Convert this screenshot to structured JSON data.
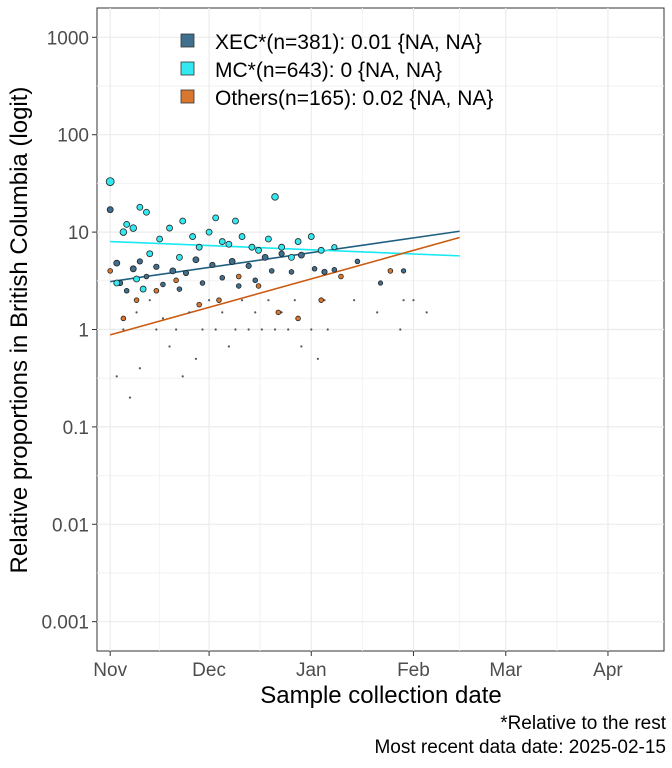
{
  "chart_data": {
    "type": "scatter",
    "y_scale": "logit",
    "xlabel": "Sample collection date",
    "ylabel": "Relative proportions in British Columbia (logit)",
    "x_ticks": [
      {
        "label": "Nov",
        "date": "2024-11-01"
      },
      {
        "label": "Dec",
        "date": "2024-12-01"
      },
      {
        "label": "Jan",
        "date": "2025-01-01"
      },
      {
        "label": "Feb",
        "date": "2025-02-01"
      },
      {
        "label": "Mar",
        "date": "2025-03-01"
      },
      {
        "label": "Apr",
        "date": "2025-04-01"
      }
    ],
    "y_ticks": [
      {
        "label": "0.001",
        "value": 0.001
      },
      {
        "label": "0.01",
        "value": 0.01
      },
      {
        "label": "0.1",
        "value": 0.1
      },
      {
        "label": "1",
        "value": 1
      },
      {
        "label": "10",
        "value": 10
      },
      {
        "label": "100",
        "value": 100
      },
      {
        "label": "1000",
        "value": 1000
      }
    ],
    "xlim": [
      "2024-10-28",
      "2025-04-18"
    ],
    "ylim": [
      0.0005,
      2000
    ],
    "grid": true,
    "legend_position": "top-left",
    "series": [
      {
        "name": "XEC*(n=381): 0.01 {NA, NA}",
        "color": "#3f6f8f",
        "line_color": "#1f5f80",
        "trend": [
          [
            "2024-11-01",
            3.1
          ],
          [
            "2025-02-15",
            10.2
          ]
        ],
        "points": [
          [
            "2024-11-01",
            17,
            1
          ],
          [
            "2024-11-03",
            4.8,
            1
          ],
          [
            "2024-11-04",
            3.0,
            0.8
          ],
          [
            "2024-11-06",
            2.5,
            0.6
          ],
          [
            "2024-11-08",
            4.2,
            1
          ],
          [
            "2024-11-10",
            5.0,
            0.8
          ],
          [
            "2024-11-12",
            3.5,
            0.6
          ],
          [
            "2024-11-15",
            4.4,
            0.8
          ],
          [
            "2024-11-17",
            2.9,
            0.6
          ],
          [
            "2024-11-20",
            4.0,
            1
          ],
          [
            "2024-11-22",
            2.6,
            0.6
          ],
          [
            "2024-11-24",
            3.8,
            0.8
          ],
          [
            "2024-11-27",
            5.2,
            1
          ],
          [
            "2024-11-29",
            3.0,
            0.6
          ],
          [
            "2024-12-02",
            4.6,
            0.8
          ],
          [
            "2024-12-05",
            3.4,
            0.6
          ],
          [
            "2024-12-08",
            5.0,
            1
          ],
          [
            "2024-12-10",
            2.8,
            0.6
          ],
          [
            "2024-12-13",
            4.5,
            0.8
          ],
          [
            "2024-12-15",
            3.2,
            0.6
          ],
          [
            "2024-12-18",
            5.5,
            1
          ],
          [
            "2024-12-20",
            4.0,
            0.6
          ],
          [
            "2024-12-23",
            6.0,
            0.8
          ],
          [
            "2024-12-26",
            3.9,
            0.6
          ],
          [
            "2024-12-29",
            5.8,
            1
          ],
          [
            "2025-01-02",
            4.2,
            0.6
          ],
          [
            "2025-01-05",
            3.9,
            0.8
          ],
          [
            "2025-01-08",
            4.1,
            0.6
          ],
          [
            "2025-01-15",
            5.0,
            0.6
          ],
          [
            "2025-01-22",
            3.0,
            0.5
          ],
          [
            "2025-01-29",
            4.0,
            0.5
          ]
        ]
      },
      {
        "name": "MC*(n=643): 0 {NA, NA}",
        "color": "#33e8f0",
        "line_color": "#19e8f4",
        "trend": [
          [
            "2024-11-01",
            8.0
          ],
          [
            "2025-02-15",
            5.7
          ]
        ],
        "points": [
          [
            "2024-11-01",
            33,
            1.6
          ],
          [
            "2024-11-03",
            3.0,
            1
          ],
          [
            "2024-11-05",
            10.0,
            1.2
          ],
          [
            "2024-11-06",
            12.0,
            1
          ],
          [
            "2024-11-08",
            11.0,
            1.2
          ],
          [
            "2024-11-09",
            3.3,
            1
          ],
          [
            "2024-11-10",
            18.0,
            1
          ],
          [
            "2024-11-11",
            2.6,
            1
          ],
          [
            "2024-11-12",
            16.0,
            1
          ],
          [
            "2024-11-13",
            6.0,
            1
          ],
          [
            "2024-11-16",
            8.5,
            1
          ],
          [
            "2024-11-19",
            11.0,
            1
          ],
          [
            "2024-11-22",
            5.5,
            1
          ],
          [
            "2024-11-23",
            13.0,
            1
          ],
          [
            "2024-11-26",
            9.0,
            1
          ],
          [
            "2024-11-28",
            7.0,
            1
          ],
          [
            "2024-12-01",
            10.0,
            1
          ],
          [
            "2024-12-03",
            14.0,
            1
          ],
          [
            "2024-12-05",
            8.0,
            1
          ],
          [
            "2024-12-07",
            7.5,
            1
          ],
          [
            "2024-12-09",
            13.0,
            1
          ],
          [
            "2024-12-11",
            9.0,
            1
          ],
          [
            "2024-12-14",
            7.0,
            1
          ],
          [
            "2024-12-16",
            6.5,
            1
          ],
          [
            "2024-12-19",
            8.5,
            1
          ],
          [
            "2024-12-21",
            23.0,
            1.2
          ],
          [
            "2024-12-23",
            7.0,
            1
          ],
          [
            "2024-12-26",
            5.5,
            1
          ],
          [
            "2024-12-28",
            8.0,
            1
          ],
          [
            "2025-01-01",
            9.0,
            1
          ],
          [
            "2025-01-04",
            6.5,
            1
          ],
          [
            "2025-01-08",
            7.0,
            0.8
          ]
        ]
      },
      {
        "name": "Others(n=165): 0.02 {NA, NA}",
        "color": "#d9772e",
        "line_color": "#cc5a10",
        "trend": [
          [
            "2024-11-01",
            0.88
          ],
          [
            "2025-02-15",
            8.8
          ]
        ],
        "points": [
          [
            "2024-11-01",
            4.0,
            0.6
          ],
          [
            "2024-11-05",
            1.3,
            0.6
          ],
          [
            "2024-11-09",
            2.0,
            0.6
          ],
          [
            "2024-11-15",
            2.5,
            0.6
          ],
          [
            "2024-11-21",
            3.2,
            0.6
          ],
          [
            "2024-11-28",
            1.8,
            0.6
          ],
          [
            "2024-12-04",
            2.0,
            0.6
          ],
          [
            "2024-12-10",
            3.5,
            0.6
          ],
          [
            "2024-12-16",
            2.8,
            0.6
          ],
          [
            "2024-12-22",
            1.5,
            0.6
          ],
          [
            "2024-12-28",
            1.3,
            0.6
          ],
          [
            "2025-01-04",
            2.0,
            0.6
          ],
          [
            "2025-01-10",
            3.5,
            0.6
          ],
          [
            "2025-01-25",
            4.0,
            0.6
          ]
        ]
      }
    ],
    "small_points": [
      [
        "2024-11-03",
        0.33
      ],
      [
        "2024-11-05",
        1.0
      ],
      [
        "2024-11-07",
        0.2
      ],
      [
        "2024-11-09",
        1.5
      ],
      [
        "2024-11-10",
        0.4
      ],
      [
        "2024-11-13",
        2.0
      ],
      [
        "2024-11-15",
        1.0
      ],
      [
        "2024-11-17",
        1.3
      ],
      [
        "2024-11-19",
        0.67
      ],
      [
        "2024-11-21",
        1.0
      ],
      [
        "2024-11-23",
        0.33
      ],
      [
        "2024-11-25",
        1.5
      ],
      [
        "2024-11-27",
        0.5
      ],
      [
        "2024-11-29",
        1.0
      ],
      [
        "2024-12-01",
        2.0
      ],
      [
        "2024-12-03",
        1.0
      ],
      [
        "2024-12-05",
        1.5
      ],
      [
        "2024-12-07",
        0.67
      ],
      [
        "2024-12-09",
        1.0
      ],
      [
        "2024-12-11",
        2.0
      ],
      [
        "2024-12-13",
        1.0
      ],
      [
        "2024-12-15",
        1.5
      ],
      [
        "2024-12-17",
        1.0
      ],
      [
        "2024-12-19",
        2.0
      ],
      [
        "2024-12-21",
        1.0
      ],
      [
        "2024-12-23",
        1.5
      ],
      [
        "2024-12-25",
        1.0
      ],
      [
        "2024-12-27",
        2.0
      ],
      [
        "2024-12-29",
        0.67
      ],
      [
        "2025-01-01",
        1.0
      ],
      [
        "2025-01-03",
        0.5
      ],
      [
        "2025-01-05",
        2.0
      ],
      [
        "2025-01-06",
        1.0
      ],
      [
        "2025-01-14",
        2.0
      ],
      [
        "2025-01-21",
        1.5
      ],
      [
        "2025-01-28",
        1.0
      ],
      [
        "2025-01-29",
        2.0
      ],
      [
        "2025-02-01",
        2.0
      ],
      [
        "2025-02-05",
        1.5
      ]
    ]
  },
  "caption": {
    "note": "*Relative to the rest",
    "recent_date": "Most recent data date: 2025-02-15"
  }
}
